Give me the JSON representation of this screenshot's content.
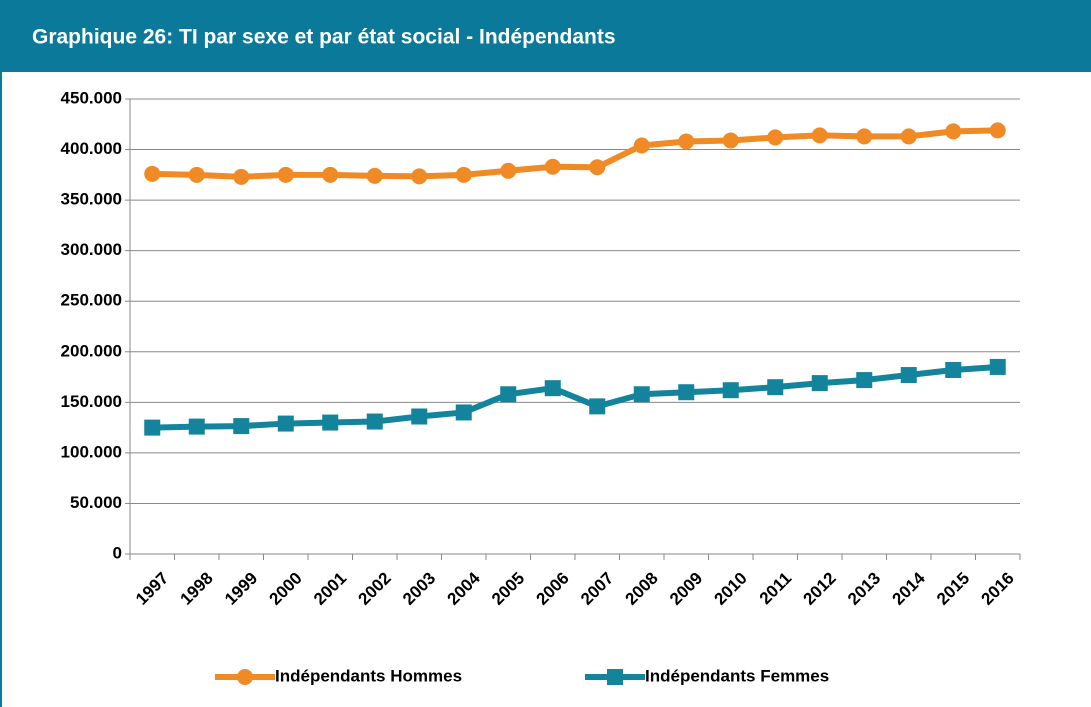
{
  "chart_data": {
    "type": "line",
    "title": "Graphique 26: TI par  sexe et par état social - Indépendants",
    "categories": [
      "1997",
      "1998",
      "1999",
      "2000",
      "2001",
      "2002",
      "2003",
      "2004",
      "2005",
      "2006",
      "2007",
      "2008",
      "2009",
      "2010",
      "2011",
      "2012",
      "2013",
      "2014",
      "2015",
      "2016"
    ],
    "series": [
      {
        "name": "Indépendants Hommes",
        "color": "#f08a24",
        "marker": "circle",
        "values": [
          376000,
          375000,
          373000,
          375000,
          375000,
          374000,
          373500,
          375000,
          379000,
          383000,
          382500,
          404000,
          408000,
          409000,
          412000,
          414000,
          413000,
          413000,
          418000,
          419000
        ]
      },
      {
        "name": "Indépendants Femmes",
        "color": "#14849c",
        "marker": "square",
        "values": [
          125000,
          126000,
          126500,
          129000,
          130000,
          131000,
          136000,
          140000,
          158000,
          164000,
          146000,
          158000,
          160000,
          162000,
          165000,
          169000,
          172000,
          177000,
          182000,
          185000
        ]
      }
    ],
    "ylim": [
      0,
      450000
    ],
    "yticks": [
      0,
      {
        "value": 50000,
        "label": "50.000"
      },
      {
        "value": 100000,
        "label": "100.000"
      },
      {
        "value": 150000,
        "label": "150.000"
      },
      {
        "value": 200000,
        "label": "200.000"
      },
      {
        "value": 250000,
        "label": "250.000"
      },
      {
        "value": 300000,
        "label": "300.000"
      },
      {
        "value": 350000,
        "label": "350.000"
      },
      {
        "value": 400000,
        "label": "400.000"
      },
      {
        "value": 450000,
        "label": "450.000"
      }
    ],
    "grid": true,
    "legend": "bottom"
  }
}
